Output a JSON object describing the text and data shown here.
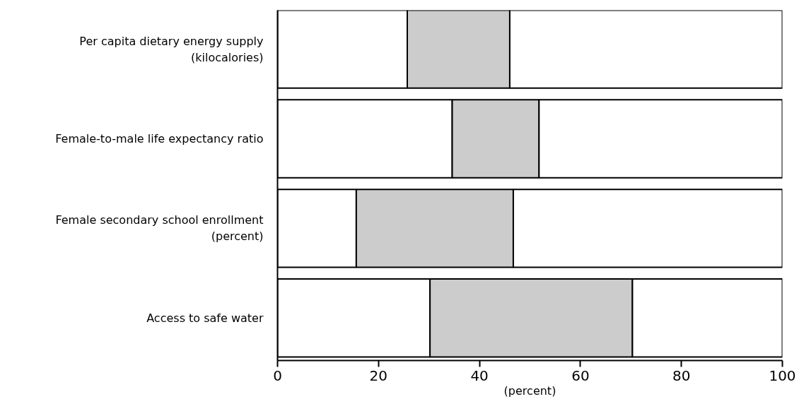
{
  "chart_data": {
    "type": "bar",
    "orientation": "horizontal",
    "stacked": true,
    "categories": [
      "Per capita dietary energy supply (kilocalories)",
      "Female-to-male life expectancy ratio",
      "Female secondary school enrollment (percent)",
      "Access to safe water"
    ],
    "series": [
      {
        "color": "#ffffff",
        "values": [
          25.7,
          34.6,
          15.6,
          30.2
        ]
      },
      {
        "color": "#cccccc",
        "values": [
          20.3,
          17.2,
          31.1,
          40.1
        ]
      },
      {
        "color": "#ffffff",
        "values": [
          54.0,
          48.2,
          53.3,
          29.7
        ]
      }
    ],
    "xlabel": "(percent)",
    "xlim": [
      0,
      100
    ],
    "xticks": [
      0,
      20,
      40,
      60,
      80,
      100
    ],
    "grid": false
  }
}
